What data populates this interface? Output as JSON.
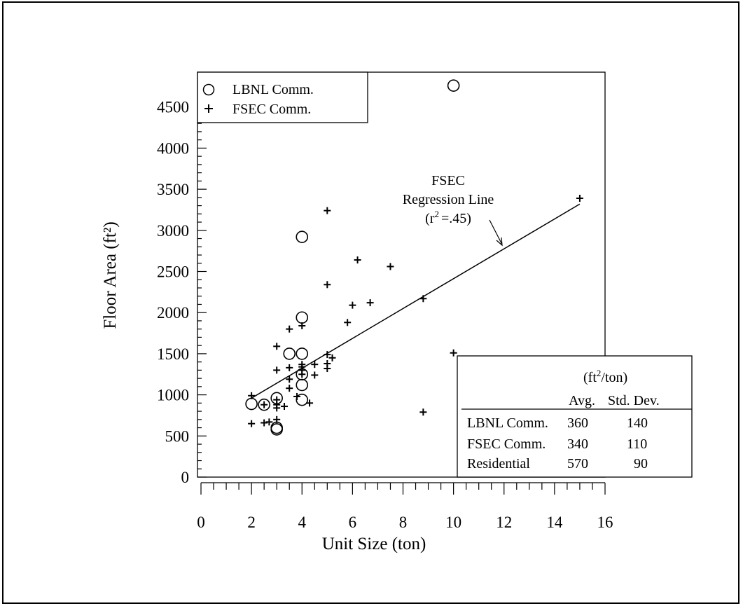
{
  "chart_data": {
    "type": "scatter",
    "title": "",
    "xlabel": "Unit Size (ton)",
    "ylabel": "Floor Area (ft²)",
    "xlim": [
      0,
      16
    ],
    "ylim": [
      0,
      5000
    ],
    "x_ticks": [
      "0",
      "2",
      "4",
      "6",
      "8",
      "10",
      "12",
      "14",
      "16"
    ],
    "y_ticks": [
      "0",
      "500",
      "1000",
      "1500",
      "2000",
      "2500",
      "3000",
      "3500",
      "4000",
      "4500"
    ],
    "grid": false,
    "legend_position": "top-left",
    "series": [
      {
        "name": "LBNL Comm.",
        "marker": "circle",
        "points": [
          [
            2,
            890
          ],
          [
            2.5,
            880
          ],
          [
            3,
            600
          ],
          [
            3,
            580
          ],
          [
            3,
            960
          ],
          [
            3.5,
            1500
          ],
          [
            4,
            1500
          ],
          [
            4,
            1250
          ],
          [
            4,
            1120
          ],
          [
            4,
            940
          ],
          [
            4,
            1940
          ],
          [
            4,
            2920
          ],
          [
            10,
            4760
          ]
        ]
      },
      {
        "name": "FSEC Comm.",
        "marker": "plus",
        "points": [
          [
            2,
            650
          ],
          [
            2,
            990
          ],
          [
            2.5,
            660
          ],
          [
            2.5,
            880
          ],
          [
            2.7,
            670
          ],
          [
            3,
            1590
          ],
          [
            3,
            1300
          ],
          [
            3,
            940
          ],
          [
            3,
            840
          ],
          [
            3,
            700
          ],
          [
            3,
            880
          ],
          [
            3.3,
            860
          ],
          [
            3.5,
            1800
          ],
          [
            3.5,
            1330
          ],
          [
            3.5,
            1190
          ],
          [
            3.5,
            1080
          ],
          [
            3.8,
            980
          ],
          [
            4,
            1840
          ],
          [
            4,
            1340
          ],
          [
            4,
            1370
          ],
          [
            4,
            1300
          ],
          [
            4,
            1250
          ],
          [
            4.3,
            900
          ],
          [
            4.5,
            1370
          ],
          [
            4.5,
            1240
          ],
          [
            5,
            3240
          ],
          [
            5,
            2340
          ],
          [
            5,
            1490
          ],
          [
            5,
            1380
          ],
          [
            5,
            1320
          ],
          [
            5.2,
            1450
          ],
          [
            5.8,
            1880
          ],
          [
            6,
            2090
          ],
          [
            6.2,
            2640
          ],
          [
            6.7,
            2120
          ],
          [
            7.5,
            2560
          ],
          [
            8.8,
            2170
          ],
          [
            8.8,
            790
          ],
          [
            10,
            1510
          ],
          [
            15,
            3390
          ]
        ]
      }
    ],
    "regression": {
      "name": "FSEC Regression Line",
      "r2_label": "(r",
      "r2_value": "=.45)",
      "label_top": "FSEC",
      "label_mid": "Regression Line",
      "points": [
        [
          2,
          960
        ],
        [
          15,
          3320
        ]
      ]
    },
    "stats_table": {
      "unit": "(ft",
      "unit_suffix": "/ton)",
      "columns": [
        "Avg.",
        "Std. Dev."
      ],
      "rows": [
        {
          "label": "LBNL Comm.",
          "avg": "360",
          "std": "140"
        },
        {
          "label": "FSEC Comm.",
          "avg": "340",
          "std": "110"
        },
        {
          "label": "Residential",
          "avg": "570",
          "std": "90"
        }
      ]
    }
  }
}
